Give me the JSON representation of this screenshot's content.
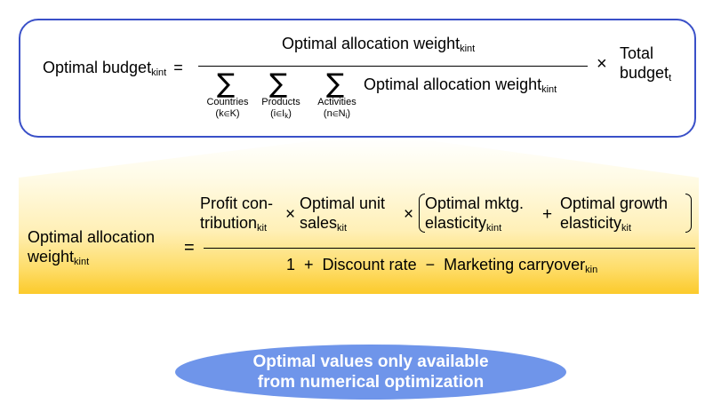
{
  "formula_top": {
    "lhs": "Optimal budget",
    "lhs_sub": "kint",
    "equals": "=",
    "numerator": "Optimal allocation weight",
    "numerator_sub": "kint",
    "sum_symbol": "∑",
    "sums": [
      {
        "label": "Countries",
        "range_main": "(k",
        "range_in": "∈",
        "range_set": "K)"
      },
      {
        "label": "Products",
        "range_main": "(i",
        "range_in": "∈",
        "range_set": "I",
        "range_set_sub": "k",
        "range_close": ")"
      },
      {
        "label": "Activities",
        "range_main": "(n",
        "range_in": "∈",
        "range_set": "N",
        "range_set_sub": "i",
        "range_close": ")"
      }
    ],
    "denominator_term": "Optimal allocation weight",
    "denominator_term_sub": "kint",
    "times": "×",
    "total_line1": "Total",
    "total_line2": "budget",
    "total_sub": "t"
  },
  "formula_bottom": {
    "lhs_line1": "Optimal allocation",
    "lhs_line2": "weight",
    "lhs_sub": "kint",
    "equals": "=",
    "profit_line1": "Profit con-",
    "profit_line2": "tribution",
    "profit_sub": "kit",
    "times1": "×",
    "sales_line1": "Optimal unit",
    "sales_line2": "sales",
    "sales_sub": "kit",
    "times2": "×",
    "mktg_line1": "Optimal mktg.",
    "mktg_line2": "elasticity",
    "mktg_sub": "kint",
    "plus": "+",
    "growth_line1": "Optimal growth",
    "growth_line2": "elasticity",
    "growth_sub": "kit",
    "denominator": "1  +  Discount rate  −  Marketing carryover",
    "denominator_sub": "kin"
  },
  "callout": {
    "line1": "Optimal values only available",
    "line2": "from numerical optimization"
  },
  "colors": {
    "top_border": "#3a50c8",
    "ellipse_fill": "#6f95ea",
    "gradient_bottom": "#fcca2b"
  }
}
